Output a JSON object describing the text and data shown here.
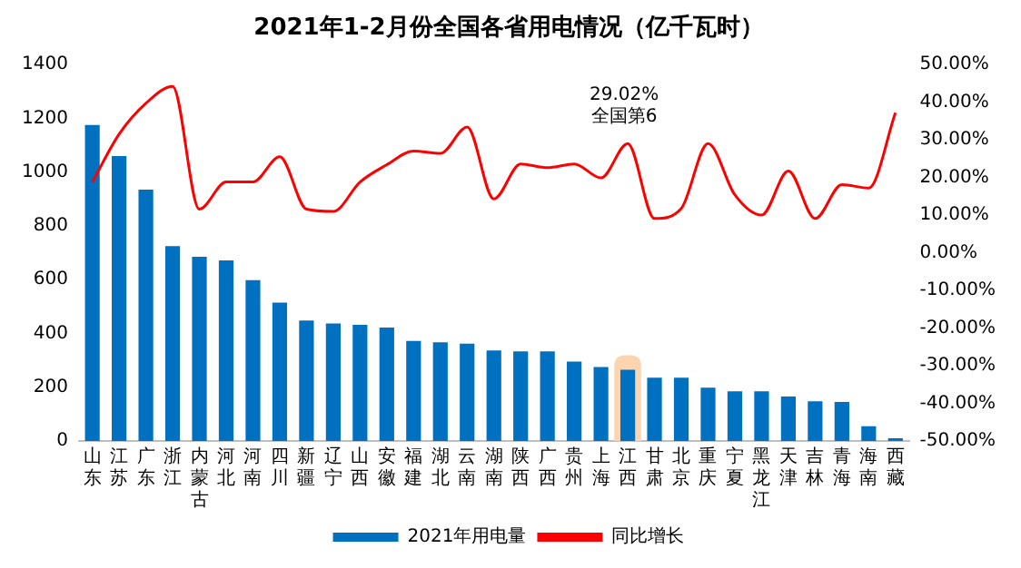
{
  "chart_data": {
    "type": "bar",
    "title": "2021年1-2月份全国各省用电情况（亿千瓦时）",
    "categories": [
      "山东",
      "江苏",
      "广东",
      "浙江",
      "内蒙古",
      "河北",
      "河南",
      "四川",
      "新疆",
      "辽宁",
      "山西",
      "安徽",
      "福建",
      "湖北",
      "云南",
      "湖南",
      "陕西",
      "广西",
      "贵州",
      "上海",
      "江西",
      "甘肃",
      "北京",
      "重庆",
      "宁夏",
      "黑龙江",
      "天津",
      "吉林",
      "青海",
      "海南",
      "西藏"
    ],
    "series": [
      {
        "name": "2021年用电量",
        "color": "#0070c0",
        "values": [
          1175,
          1060,
          935,
          725,
          685,
          672,
          598,
          515,
          448,
          437,
          432,
          422,
          372,
          367,
          362,
          337,
          333,
          333,
          295,
          275,
          265,
          235,
          235,
          198,
          185,
          185,
          165,
          148,
          145,
          55,
          10
        ]
      },
      {
        "name": "同比增长",
        "type": "line",
        "axis": "y2",
        "color": "#ff0000",
        "values": [
          18.8,
          31.5,
          39.7,
          44.2,
          11.6,
          18.8,
          18.8,
          25.5,
          11.6,
          11,
          18.8,
          23.4,
          27,
          26.4,
          33.4,
          14.3,
          23.6,
          22.6,
          23.6,
          19.9,
          29.02,
          9.1,
          11.8,
          29,
          15.4,
          10,
          21.7,
          9.1,
          18.1,
          17.2,
          37.2
        ]
      }
    ],
    "ylim": [
      0,
      1400
    ],
    "yticks": [
      0,
      200,
      400,
      600,
      800,
      1000,
      1200,
      1400
    ],
    "y2lim": [
      -50,
      50
    ],
    "y2ticks": [
      {
        "value": -50,
        "label": "-50.00%"
      },
      {
        "value": -40,
        "label": "-40.00%"
      },
      {
        "value": -30,
        "label": "-30.00%"
      },
      {
        "value": -20,
        "label": "-20.00%"
      },
      {
        "value": -10,
        "label": "-10.00%"
      },
      {
        "value": 0,
        "label": "0.00%"
      },
      {
        "value": 10,
        "label": "10.00%"
      },
      {
        "value": 20,
        "label": "20.00%"
      },
      {
        "value": 30,
        "label": "30.00%"
      },
      {
        "value": 40,
        "label": "40.00%"
      },
      {
        "value": 50,
        "label": "50.00%"
      }
    ],
    "bands": [
      {
        "axis": "x",
        "from": "江西",
        "to": "江西",
        "color": "#fcd5b0"
      }
    ],
    "annotations": [
      "29.02%\n全国第6"
    ],
    "grid": false,
    "legend": "bottom",
    "marker": "none",
    "line_style": "solid"
  }
}
